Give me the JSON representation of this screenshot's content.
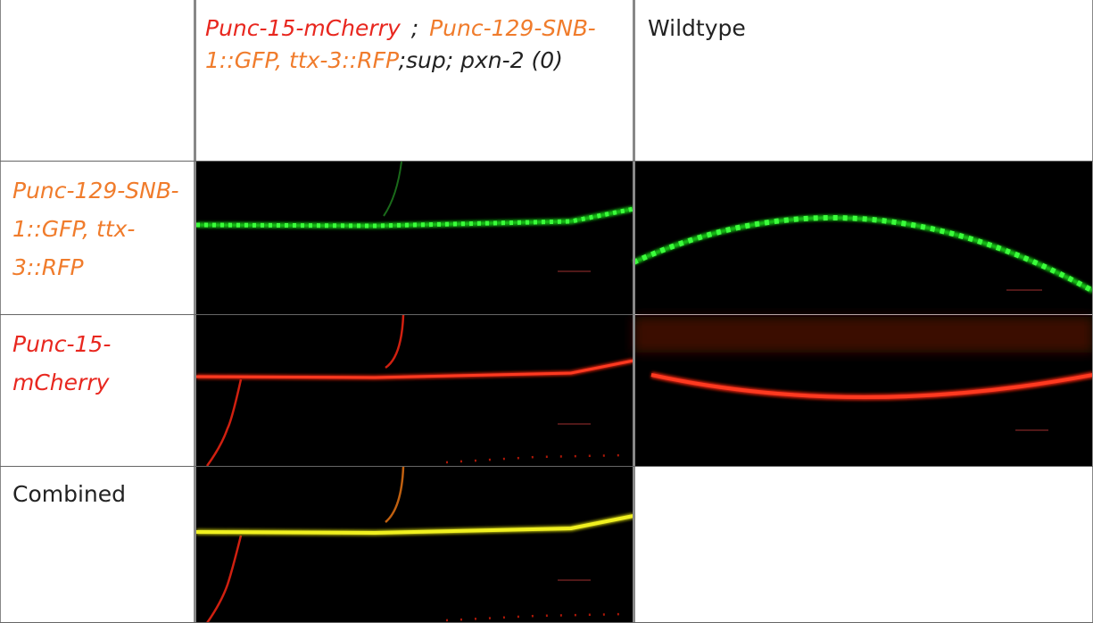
{
  "table": {
    "header": {
      "genotype_parts": [
        "Punc-15-mCherry",
        ";",
        "Punc-129-SNB-1::GFP, ttx-3::RFP",
        ";sup; pxn-2 (0)"
      ],
      "wildtype": "Wildtype"
    },
    "rows": [
      "Punc-129-SNB-1::GFP, ttx-3::RFP",
      "Punc-15-mCherry",
      "Combined"
    ]
  }
}
